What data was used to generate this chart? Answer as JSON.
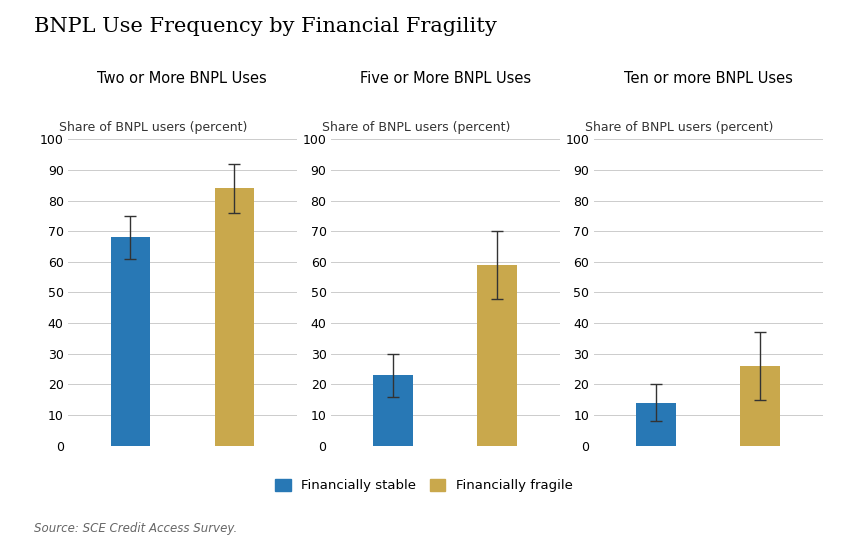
{
  "title": "BNPL Use Frequency by Financial Fragility",
  "subtitle_source": "Source: SCE Credit Access Survey.",
  "subplots": [
    {
      "title": "Two or More BNPL Uses",
      "ylabel": "Share of BNPL users (percent)",
      "stable_value": 68,
      "fragile_value": 84,
      "stable_err": 7,
      "fragile_err": 8
    },
    {
      "title": "Five or More BNPL Uses",
      "ylabel": "Share of BNPL users (percent)",
      "stable_value": 23,
      "fragile_value": 59,
      "stable_err": 7,
      "fragile_err": 11
    },
    {
      "title": "Ten or more BNPL Uses",
      "ylabel": "Share of BNPL users (percent)",
      "stable_value": 14,
      "fragile_value": 26,
      "stable_err": 6,
      "fragile_err": 11
    }
  ],
  "color_stable": "#2878b5",
  "color_fragile": "#C9A84C",
  "legend_stable": "Financially stable",
  "legend_fragile": "Financially fragile",
  "ylim": [
    0,
    100
  ],
  "yticks": [
    0,
    10,
    20,
    30,
    40,
    50,
    60,
    70,
    80,
    90,
    100
  ],
  "bar_width": 0.38,
  "background_color": "#ffffff",
  "title_fontsize": 15,
  "subplot_title_fontsize": 10.5,
  "ylabel_fontsize": 9,
  "tick_fontsize": 9,
  "legend_fontsize": 9.5,
  "source_fontsize": 8.5
}
